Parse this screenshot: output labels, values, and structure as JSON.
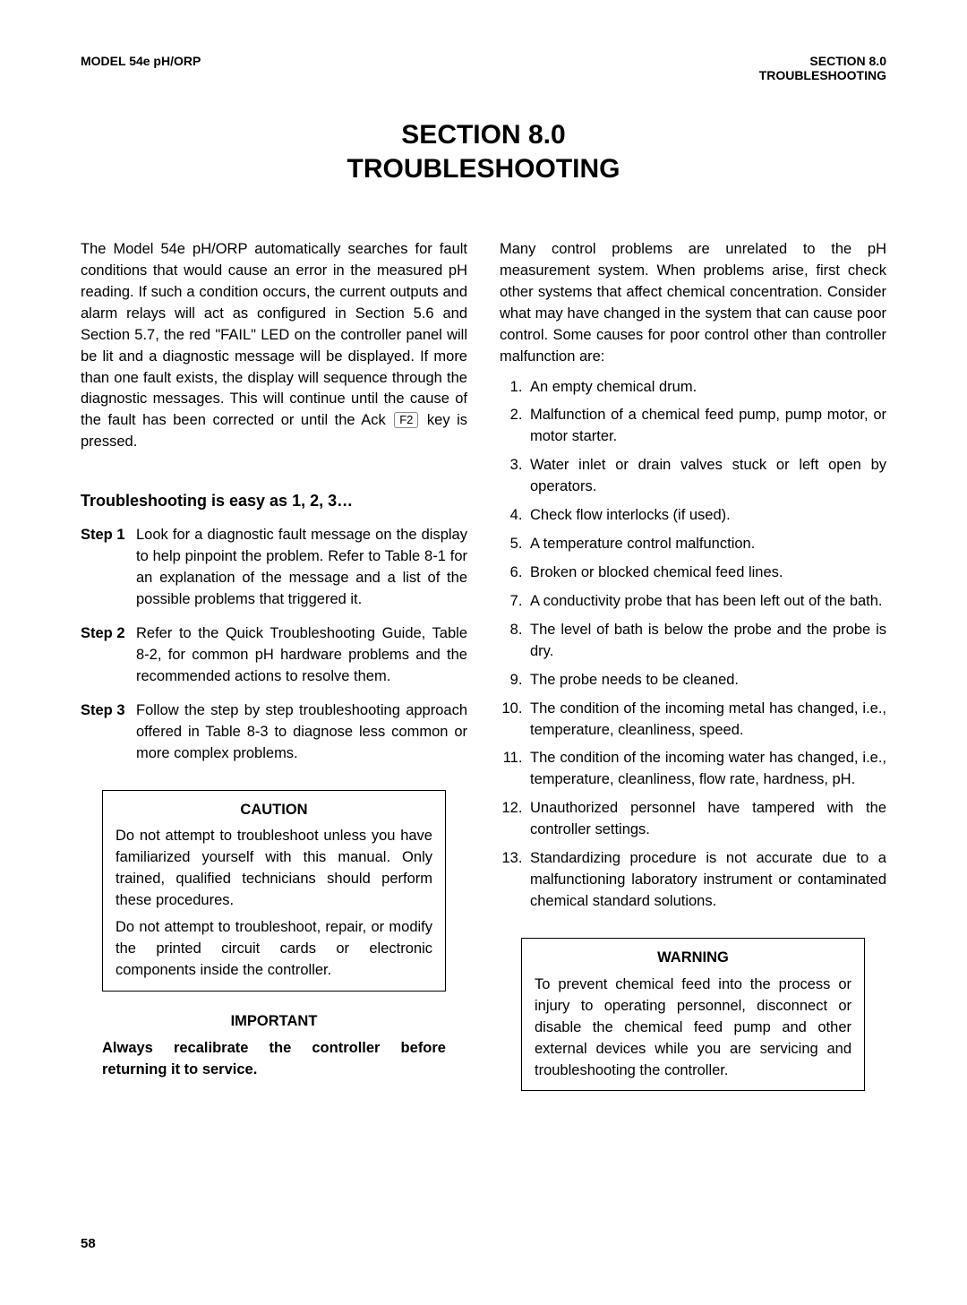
{
  "header": {
    "left": "MODEL 54e pH/ORP",
    "right_line1": "SECTION 8.0",
    "right_line2": "TROUBLESHOOTING"
  },
  "title_line1": "SECTION 8.0",
  "title_line2": "TROUBLESHOOTING",
  "intro_part1": "The Model 54e pH/ORP automatically searches for fault conditions that would cause an error in the measured pH reading. If such a condition occurs, the current outputs and alarm relays will act as configured in Section 5.6 and Section 5.7, the red \"FAIL\" LED on the controller panel will be lit and a diagnostic message will be displayed. If more than one fault exists, the display will sequence through the diagnostic messages. This will continue until the cause of the fault has been corrected or until the Ack ",
  "intro_key": "F2",
  "intro_part2": " key is pressed.",
  "subhead": "Troubleshooting is easy as 1, 2, 3…",
  "steps": [
    {
      "label": "Step 1",
      "text": "Look for a diagnostic fault message on the display to help pinpoint the problem. Refer to Table 8-1 for an explanation of the message and a list of the possible problems that triggered it."
    },
    {
      "label": "Step 2",
      "text": "Refer to the Quick Troubleshooting Guide, Table 8-2, for common pH hardware problems and the recommended actions to resolve them."
    },
    {
      "label": "Step 3",
      "text": "Follow the step by step troubleshooting approach offered in Table 8-3 to diagnose less common or more complex problems."
    }
  ],
  "caution": {
    "title": "CAUTION",
    "p1": "Do not attempt to troubleshoot unless you have familiarized yourself with this manual. Only trained, qualified technicians should perform these procedures.",
    "p2": "Do not attempt to troubleshoot, repair, or modify the printed circuit cards or electronic components inside the controller."
  },
  "important": {
    "title": "IMPORTANT",
    "text": "Always recalibrate the controller before returning it to service."
  },
  "intro2": "Many control problems are unrelated to the pH measurement system. When problems arise, first check other systems that affect chemical concentration. Consider what may have changed in the system that can cause poor control. Some causes for poor control other than controller malfunction are:",
  "causes": [
    "An empty chemical drum.",
    "Malfunction of a chemical feed pump, pump motor, or motor starter.",
    "Water inlet or drain valves stuck or left open by operators.",
    "Check flow interlocks (if used).",
    "A temperature control malfunction.",
    "Broken or blocked chemical feed lines.",
    "A conductivity probe that has been left out of the bath.",
    "The level of bath is below the probe and the probe is dry.",
    "The probe needs to be cleaned.",
    "The condition of the incoming metal has changed, i.e., temperature, cleanliness, speed.",
    "The condition of the incoming water has changed, i.e., temperature, cleanliness, flow rate, hardness, pH.",
    "Unauthorized personnel have tampered with the controller settings.",
    "Standardizing procedure is not accurate due to a malfunctioning laboratory instrument or contaminated chemical standard solutions."
  ],
  "warning": {
    "title": "WARNING",
    "text": "To prevent chemical feed into the process or injury to operating personnel, disconnect or disable the chemical feed pump and other external devices while you are servicing and troubleshooting the controller."
  },
  "page_number": "58"
}
